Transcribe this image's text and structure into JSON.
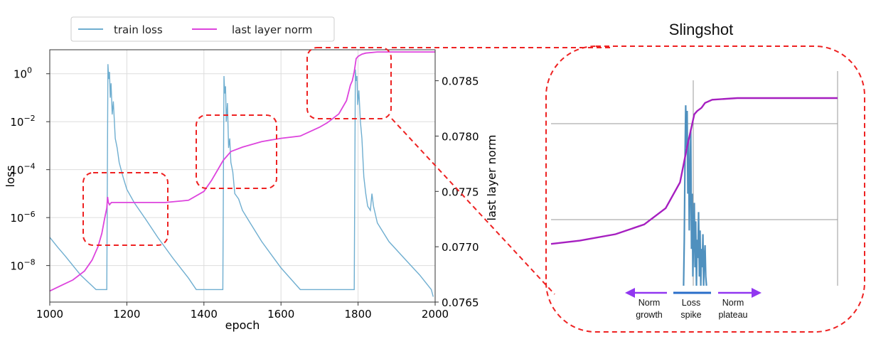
{
  "colors": {
    "train_loss": "#6faed0",
    "last_layer_norm": "#dd44dd",
    "zoom_loss": "#4f90be",
    "zoom_norm": "#a61fc0",
    "highlight_box": "#ee2222",
    "phase_arrow": "#9137f0",
    "spike_bar": "#2a6ec9"
  },
  "legend": {
    "loss_label": "train loss",
    "norm_label": "last layer norm",
    "placement": "upper-left (outside top)"
  },
  "chart_data": [
    {
      "type": "line",
      "xlabel": "epoch",
      "ylabel_left": "loss",
      "ylabel_right": "last layer norm",
      "xlim": [
        1000,
        2000
      ],
      "x_ticks": [
        "1000",
        "1200",
        "1400",
        "1600",
        "1800",
        "2000"
      ],
      "y_left_scale": "log",
      "y_left_lim": [
        3e-10,
        10
      ],
      "y_left_ticks": [
        {
          "value": 1,
          "base": "10",
          "exp": "0"
        },
        {
          "value": 0.01,
          "base": "10",
          "exp": "−2"
        },
        {
          "value": 0.0001,
          "base": "10",
          "exp": "−4"
        },
        {
          "value": 1e-06,
          "base": "10",
          "exp": "−6"
        },
        {
          "value": 1e-08,
          "base": "10",
          "exp": "−8"
        }
      ],
      "y_right_lim": [
        0.0765,
        0.07878
      ],
      "y_right_ticks": [
        "0.0765",
        "0.0770",
        "0.0775",
        "0.0780",
        "0.0785"
      ],
      "grid": true,
      "series": [
        {
          "name": "train loss",
          "axis": "left",
          "x": [
            1000,
            1020,
            1040,
            1060,
            1080,
            1100,
            1120,
            1140,
            1148,
            1151,
            1153,
            1155,
            1157,
            1159,
            1162,
            1165,
            1170,
            1175,
            1180,
            1190,
            1200,
            1220,
            1250,
            1280,
            1320,
            1360,
            1380,
            1400,
            1420,
            1440,
            1449,
            1452,
            1454,
            1456,
            1458,
            1461,
            1464,
            1467,
            1470,
            1475,
            1480,
            1490,
            1500,
            1520,
            1550,
            1600,
            1650,
            1700,
            1750,
            1780,
            1790,
            1793,
            1795,
            1797,
            1799,
            1802,
            1806,
            1810,
            1815,
            1820,
            1825,
            1832,
            1836,
            1840,
            1850,
            1880,
            1920,
            1960,
            1990,
            1995
          ],
          "y": [
            1.5e-07,
            6e-08,
            2.5e-08,
            1e-08,
            4e-09,
            2e-09,
            1e-09,
            1e-09,
            1e-09,
            2.5,
            0.6,
            1.2,
            0.1,
            0.4,
            0.02,
            0.07,
            0.002,
            0.0008,
            0.0002,
            5e-05,
            1.5e-05,
            4e-06,
            8e-07,
            1.5e-07,
            2e-08,
            3e-09,
            1e-09,
            1e-09,
            1e-09,
            1e-09,
            1e-09,
            0.8,
            0.15,
            0.3,
            0.01,
            0.06,
            0.0008,
            0.002,
            0.0002,
            8e-05,
            1e-05,
            6e-06,
            2e-06,
            6e-07,
            1e-07,
            8e-09,
            1e-09,
            1e-09,
            1e-09,
            1e-09,
            1e-09,
            1.5,
            0.5,
            0.8,
            0.05,
            0.2,
            0.01,
            0.002,
            5e-05,
            1e-05,
            3e-06,
            2e-06,
            1e-05,
            3e-06,
            6e-07,
            1e-07,
            2e-08,
            4e-09,
            1e-09,
            5e-10
          ]
        },
        {
          "name": "last layer norm",
          "axis": "right",
          "x": [
            1000,
            1030,
            1060,
            1090,
            1110,
            1125,
            1135,
            1142,
            1148,
            1150,
            1152,
            1155,
            1160,
            1200,
            1260,
            1300,
            1360,
            1400,
            1420,
            1440,
            1450,
            1455,
            1460,
            1470,
            1500,
            1550,
            1600,
            1650,
            1700,
            1720,
            1750,
            1770,
            1780,
            1785,
            1790,
            1795,
            1800,
            1810,
            1820,
            1850,
            1900,
            1950,
            2000
          ],
          "y": [
            0.0766,
            0.07665,
            0.0767,
            0.07678,
            0.07688,
            0.077,
            0.07712,
            0.07725,
            0.07735,
            0.07745,
            0.0774,
            0.07738,
            0.0774,
            0.0774,
            0.0774,
            0.0774,
            0.07742,
            0.0775,
            0.0776,
            0.07772,
            0.07778,
            0.0778,
            0.07782,
            0.07786,
            0.0779,
            0.07795,
            0.07798,
            0.078,
            0.07808,
            0.07812,
            0.0782,
            0.07832,
            0.07846,
            0.0785,
            0.07858,
            0.0787,
            0.07872,
            0.07874,
            0.07875,
            0.07876,
            0.07876,
            0.07876,
            0.07876
          ]
        }
      ],
      "highlight_boxes": 3
    },
    {
      "type": "line",
      "title": "Slingshot",
      "grid": true,
      "series": [
        {
          "name": "last layer norm",
          "x": [
            0,
            40,
            90,
            130,
            160,
            180,
            190,
            196,
            200,
            204,
            210,
            215,
            225,
            260,
            320,
            400
          ],
          "y": [
            0.1,
            0.12,
            0.16,
            0.22,
            0.32,
            0.48,
            0.7,
            0.82,
            0.9,
            0.92,
            0.94,
            0.97,
            0.99,
            1.0,
            1.0,
            1.0
          ]
        },
        {
          "name": "train loss",
          "x": [
            185,
            186,
            187,
            188,
            189,
            190,
            191,
            192,
            193,
            194,
            195,
            196,
            197,
            198,
            199,
            200,
            201,
            202,
            203,
            204,
            205,
            206,
            207,
            208,
            209,
            210,
            211,
            212,
            213,
            214,
            215,
            216,
            217
          ],
          "y": [
            0,
            0.25,
            0.68,
            0.98,
            0.75,
            0.95,
            0.5,
            0.8,
            0.3,
            0.6,
            0.85,
            0.2,
            0.5,
            0.05,
            0.3,
            0.45,
            0.1,
            0.35,
            0.0,
            0.25,
            0.15,
            0.4,
            0.05,
            0.3,
            0.0,
            0.2,
            0.1,
            0.28,
            0.0,
            0.15,
            0.22,
            0.05,
            0.0
          ]
        }
      ],
      "phases": [
        {
          "line1": "Norm",
          "line2": "growth",
          "direction": "left"
        },
        {
          "line1": "Loss",
          "line2": "spike",
          "direction": "none"
        },
        {
          "line1": "Norm",
          "line2": "plateau",
          "direction": "right"
        }
      ]
    }
  ]
}
